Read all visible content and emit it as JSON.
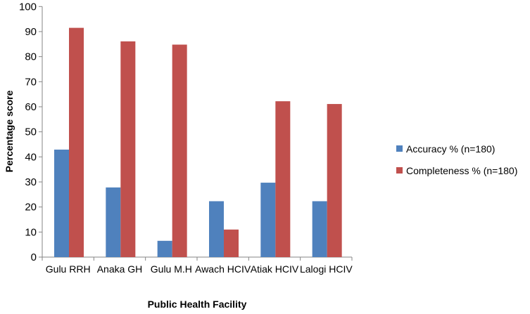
{
  "chart_data": {
    "type": "bar",
    "title": "",
    "xlabel": "Public Health Facility",
    "ylabel": "Percentage score",
    "ylim": [
      0,
      100
    ],
    "yticks": [
      0,
      10,
      20,
      30,
      40,
      50,
      60,
      70,
      80,
      90,
      100
    ],
    "grid": false,
    "legend_position": "right",
    "categories": [
      "Gulu RRH",
      "Anaka GH",
      "Gulu M.H",
      "Awach HCIV",
      "Atiak HCIV",
      "Lalogi HCIV"
    ],
    "series": [
      {
        "name": "Accuracy % (n=180)",
        "color": "#4F81BD",
        "values": [
          42.9,
          27.8,
          6.5,
          22.3,
          29.7,
          22.3
        ]
      },
      {
        "name": "Completeness % (n=180)",
        "color": "#C0504D",
        "values": [
          91.5,
          86.1,
          84.8,
          11.0,
          62.2,
          61.1
        ]
      }
    ]
  }
}
